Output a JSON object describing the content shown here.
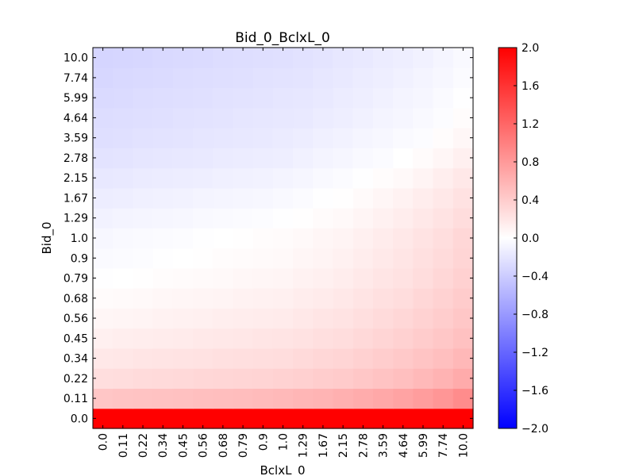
{
  "chart_data": {
    "type": "heatmap",
    "title": "Bid_0_BclxL_0",
    "xlabel": "BclxL_0",
    "ylabel": "Bid_0",
    "x_categories": [
      "0.0",
      "0.11",
      "0.22",
      "0.34",
      "0.45",
      "0.56",
      "0.68",
      "0.79",
      "0.9",
      "1.0",
      "1.29",
      "1.67",
      "2.15",
      "2.78",
      "3.59",
      "4.64",
      "5.99",
      "7.74",
      "10.0"
    ],
    "y_categories": [
      "0.0",
      "0.11",
      "0.22",
      "0.34",
      "0.45",
      "0.56",
      "0.68",
      "0.79",
      "0.9",
      "1.0",
      "1.29",
      "1.67",
      "2.15",
      "2.78",
      "3.59",
      "4.64",
      "5.99",
      "7.74",
      "10.0"
    ],
    "colorbar": {
      "colormap": "bwr",
      "min": -2.0,
      "max": 2.0,
      "ticks": [
        "2.0",
        "1.6",
        "1.2",
        "0.8",
        "0.4",
        "0.0",
        "−0.4",
        "−0.8",
        "−1.2",
        "−1.6",
        "−2.0"
      ],
      "tick_values": [
        2.0,
        1.6,
        1.2,
        0.8,
        0.4,
        0.0,
        -0.4,
        -0.8,
        -1.2,
        -1.6,
        -2.0
      ]
    },
    "colors": {
      "low": "#0000ff",
      "mid": "#ffffff",
      "high": "#ff0000"
    },
    "values_note_rows_are_y_top_is_10.0": "",
    "values": [
      [
        2.0,
        2.0,
        2.0,
        2.0,
        2.0,
        2.0,
        2.0,
        2.0,
        2.0,
        2.0,
        2.0,
        2.0,
        2.0,
        2.0,
        2.0,
        2.0,
        2.0,
        2.0,
        2.0
      ],
      [
        0.45,
        0.46,
        0.47,
        0.48,
        0.49,
        0.5,
        0.51,
        0.52,
        0.53,
        0.55,
        0.57,
        0.59,
        0.62,
        0.65,
        0.68,
        0.72,
        0.77,
        0.82,
        0.9
      ],
      [
        0.26,
        0.27,
        0.28,
        0.29,
        0.3,
        0.31,
        0.32,
        0.33,
        0.34,
        0.35,
        0.37,
        0.39,
        0.41,
        0.44,
        0.47,
        0.5,
        0.55,
        0.6,
        0.66
      ],
      [
        0.18,
        0.19,
        0.2,
        0.21,
        0.22,
        0.23,
        0.24,
        0.25,
        0.26,
        0.27,
        0.29,
        0.31,
        0.33,
        0.36,
        0.39,
        0.42,
        0.46,
        0.5,
        0.56
      ],
      [
        0.12,
        0.13,
        0.14,
        0.15,
        0.16,
        0.17,
        0.18,
        0.19,
        0.2,
        0.21,
        0.23,
        0.25,
        0.27,
        0.3,
        0.33,
        0.36,
        0.4,
        0.44,
        0.49
      ],
      [
        0.07,
        0.08,
        0.09,
        0.1,
        0.11,
        0.12,
        0.13,
        0.14,
        0.15,
        0.16,
        0.18,
        0.2,
        0.22,
        0.25,
        0.28,
        0.31,
        0.35,
        0.39,
        0.44
      ],
      [
        0.03,
        0.04,
        0.05,
        0.06,
        0.07,
        0.08,
        0.09,
        0.1,
        0.11,
        0.12,
        0.14,
        0.16,
        0.18,
        0.21,
        0.24,
        0.27,
        0.31,
        0.35,
        0.4
      ],
      [
        -0.01,
        0.0,
        0.01,
        0.02,
        0.03,
        0.04,
        0.05,
        0.06,
        0.07,
        0.08,
        0.1,
        0.12,
        0.14,
        0.17,
        0.2,
        0.23,
        0.27,
        0.31,
        0.36
      ],
      [
        -0.04,
        -0.03,
        -0.02,
        -0.01,
        0.0,
        0.01,
        0.02,
        0.03,
        0.04,
        0.05,
        0.07,
        0.09,
        0.11,
        0.14,
        0.17,
        0.2,
        0.24,
        0.28,
        0.33
      ],
      [
        -0.06,
        -0.05,
        -0.04,
        -0.03,
        -0.02,
        -0.01,
        0.0,
        0.01,
        0.02,
        0.03,
        0.05,
        0.07,
        0.09,
        0.12,
        0.15,
        0.18,
        0.22,
        0.26,
        0.31
      ],
      [
        -0.1,
        -0.09,
        -0.08,
        -0.07,
        -0.06,
        -0.05,
        -0.04,
        -0.03,
        -0.02,
        -0.01,
        0.01,
        0.03,
        0.05,
        0.08,
        0.11,
        0.14,
        0.18,
        0.22,
        0.27
      ],
      [
        -0.14,
        -0.13,
        -0.12,
        -0.11,
        -0.1,
        -0.09,
        -0.08,
        -0.07,
        -0.06,
        -0.05,
        -0.03,
        -0.01,
        0.01,
        0.04,
        0.07,
        0.1,
        0.14,
        0.18,
        0.23
      ],
      [
        -0.18,
        -0.17,
        -0.16,
        -0.15,
        -0.14,
        -0.13,
        -0.12,
        -0.11,
        -0.1,
        -0.09,
        -0.07,
        -0.05,
        -0.03,
        -0.01,
        0.02,
        0.05,
        0.09,
        0.13,
        0.18
      ],
      [
        -0.22,
        -0.21,
        -0.2,
        -0.19,
        -0.18,
        -0.17,
        -0.16,
        -0.15,
        -0.14,
        -0.13,
        -0.11,
        -0.09,
        -0.07,
        -0.05,
        -0.03,
        0.0,
        0.03,
        0.07,
        0.12
      ],
      [
        -0.25,
        -0.24,
        -0.23,
        -0.22,
        -0.21,
        -0.2,
        -0.19,
        -0.18,
        -0.17,
        -0.16,
        -0.14,
        -0.12,
        -0.1,
        -0.08,
        -0.06,
        -0.04,
        -0.02,
        0.02,
        0.06
      ],
      [
        -0.27,
        -0.26,
        -0.25,
        -0.24,
        -0.23,
        -0.22,
        -0.21,
        -0.2,
        -0.19,
        -0.18,
        -0.17,
        -0.15,
        -0.13,
        -0.11,
        -0.09,
        -0.07,
        -0.05,
        -0.02,
        0.02
      ],
      [
        -0.29,
        -0.28,
        -0.27,
        -0.26,
        -0.25,
        -0.24,
        -0.23,
        -0.22,
        -0.21,
        -0.2,
        -0.19,
        -0.17,
        -0.15,
        -0.13,
        -0.11,
        -0.09,
        -0.07,
        -0.04,
        -0.01
      ],
      [
        -0.31,
        -0.3,
        -0.29,
        -0.28,
        -0.27,
        -0.26,
        -0.25,
        -0.24,
        -0.23,
        -0.22,
        -0.21,
        -0.19,
        -0.17,
        -0.15,
        -0.13,
        -0.11,
        -0.09,
        -0.06,
        -0.03
      ],
      [
        -0.33,
        -0.32,
        -0.31,
        -0.3,
        -0.29,
        -0.28,
        -0.27,
        -0.26,
        -0.25,
        -0.24,
        -0.23,
        -0.21,
        -0.19,
        -0.17,
        -0.15,
        -0.13,
        -0.11,
        -0.08,
        -0.05
      ]
    ]
  }
}
